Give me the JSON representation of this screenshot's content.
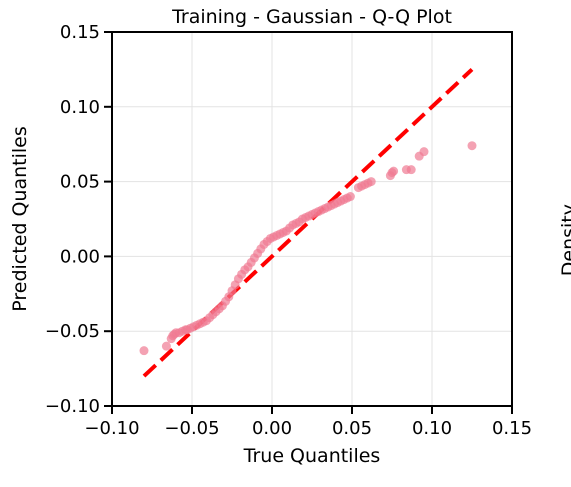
{
  "chart_data": {
    "type": "scatter",
    "title": "Training - Gaussian - Q-Q Plot",
    "xlabel": "True Quantiles",
    "ylabel": "Predicted Quantiles",
    "xlim": [
      -0.1,
      0.15
    ],
    "ylim": [
      -0.1,
      0.15
    ],
    "xticks": [
      -0.1,
      -0.05,
      0.0,
      0.05,
      0.1,
      0.15
    ],
    "yticks": [
      -0.1,
      -0.05,
      0.0,
      0.05,
      0.1,
      0.15
    ],
    "xtick_labels": [
      "−0.10",
      "−0.05",
      "0.00",
      "0.05",
      "0.10",
      "0.15"
    ],
    "ytick_labels": [
      "−0.10",
      "−0.05",
      "0.00",
      "0.05",
      "0.10",
      "0.15"
    ],
    "grid": true,
    "scatter_color": "#f07a93",
    "reference_line_color": "#ff0000",
    "reference_line": {
      "x": [
        -0.08,
        0.125
      ],
      "y": [
        -0.08,
        0.125
      ],
      "style": "dashed"
    },
    "points": {
      "x": [
        -0.08,
        -0.066,
        -0.063,
        -0.062,
        -0.061,
        -0.06,
        -0.058,
        -0.056,
        -0.054,
        -0.053,
        -0.051,
        -0.049,
        -0.047,
        -0.045,
        -0.043,
        -0.041,
        -0.039,
        -0.037,
        -0.035,
        -0.033,
        -0.031,
        -0.029,
        -0.027,
        -0.025,
        -0.023,
        -0.021,
        -0.019,
        -0.017,
        -0.015,
        -0.013,
        -0.011,
        -0.009,
        -0.007,
        -0.005,
        -0.003,
        -0.001,
        0.001,
        0.003,
        0.005,
        0.007,
        0.009,
        0.011,
        0.013,
        0.015,
        0.017,
        0.019,
        0.021,
        0.023,
        0.025,
        0.027,
        0.029,
        0.031,
        0.033,
        0.035,
        0.037,
        0.039,
        0.041,
        0.043,
        0.045,
        0.047,
        0.049,
        0.054,
        0.056,
        0.058,
        0.06,
        0.062,
        0.074,
        0.075,
        0.076,
        0.084,
        0.087,
        0.092,
        0.095,
        0.125
      ],
      "y": [
        -0.063,
        -0.06,
        -0.055,
        -0.053,
        -0.052,
        -0.051,
        -0.051,
        -0.05,
        -0.049,
        -0.049,
        -0.048,
        -0.047,
        -0.046,
        -0.045,
        -0.044,
        -0.043,
        -0.041,
        -0.039,
        -0.037,
        -0.035,
        -0.033,
        -0.03,
        -0.027,
        -0.023,
        -0.019,
        -0.015,
        -0.012,
        -0.009,
        -0.007,
        -0.004,
        -0.001,
        0.002,
        0.005,
        0.008,
        0.01,
        0.012,
        0.013,
        0.014,
        0.015,
        0.016,
        0.017,
        0.019,
        0.021,
        0.022,
        0.023,
        0.025,
        0.026,
        0.027,
        0.028,
        0.029,
        0.03,
        0.031,
        0.032,
        0.033,
        0.034,
        0.035,
        0.036,
        0.037,
        0.038,
        0.039,
        0.04,
        0.046,
        0.047,
        0.048,
        0.049,
        0.05,
        0.054,
        0.056,
        0.057,
        0.058,
        0.058,
        0.067,
        0.07,
        0.074
      ]
    },
    "clipped_neighbor_label": "Density"
  }
}
